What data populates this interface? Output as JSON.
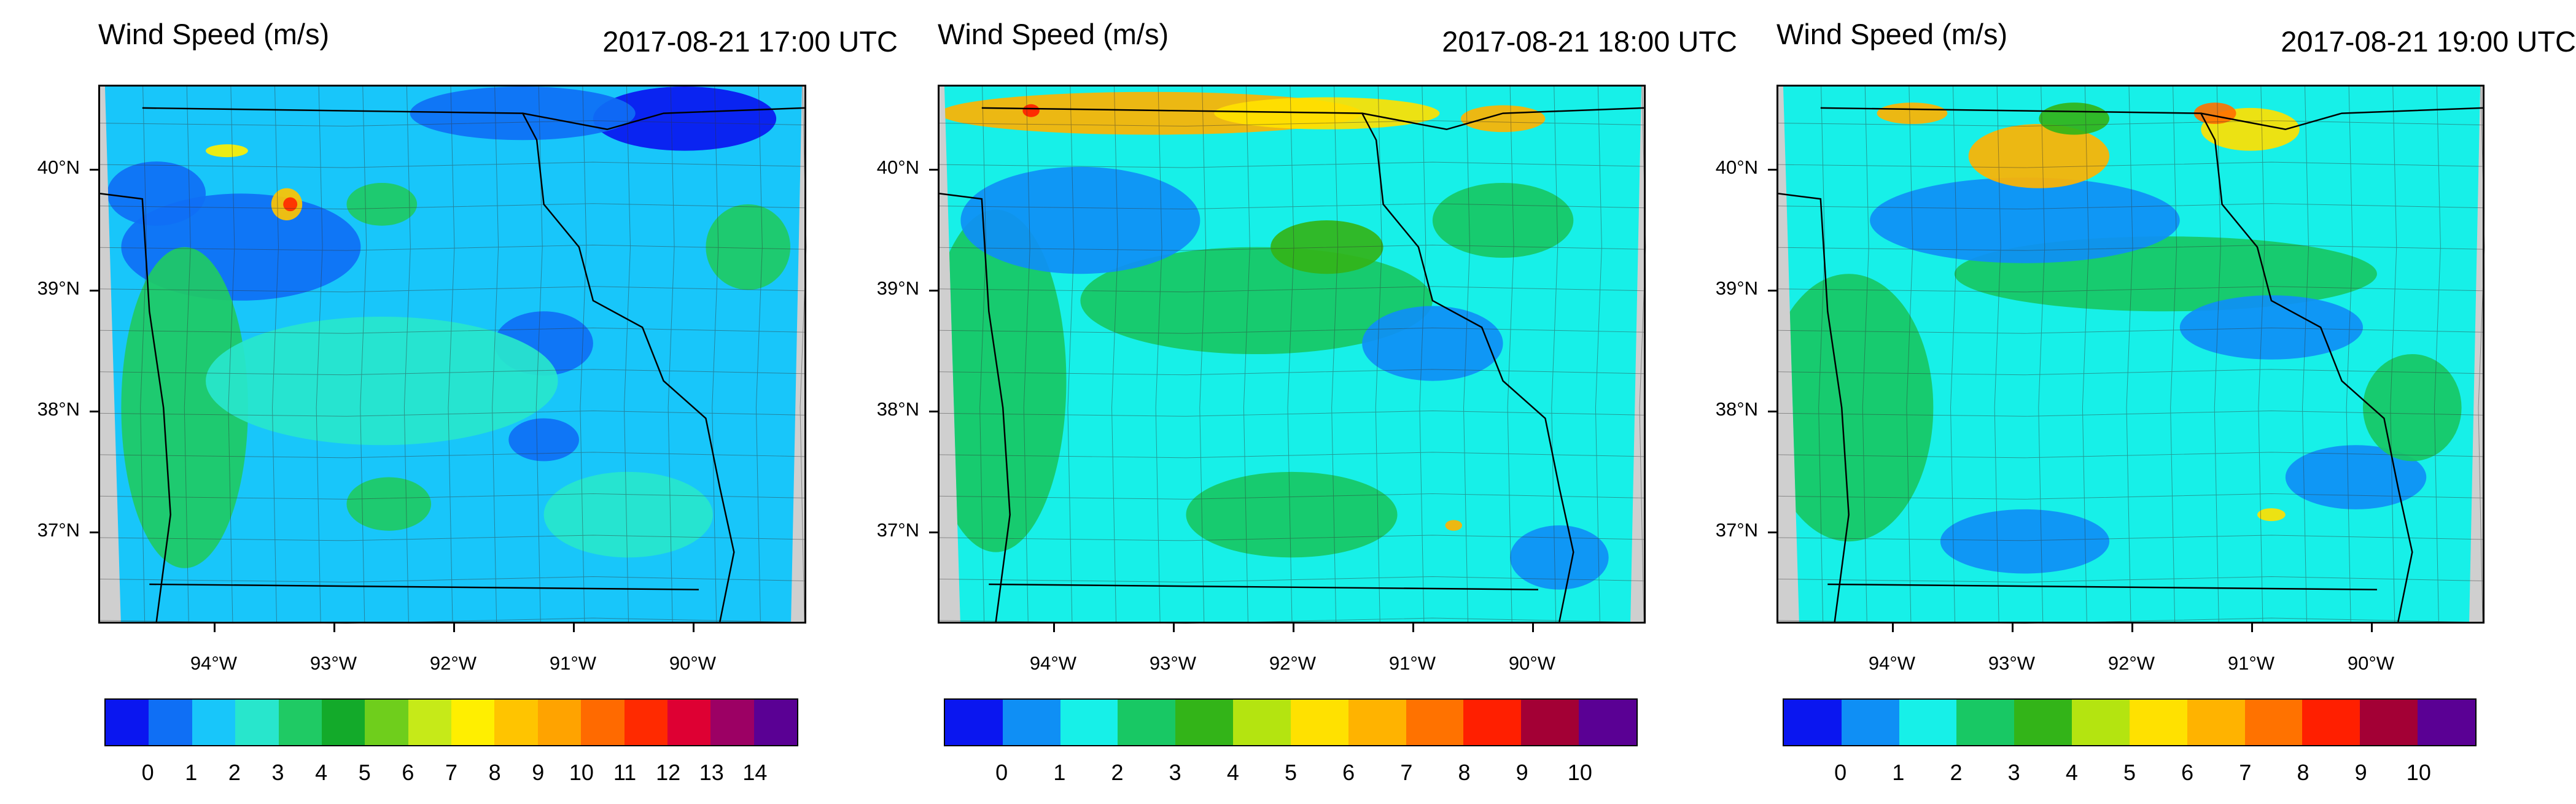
{
  "panels": [
    {
      "title": "Wind Speed (m/s)",
      "time": "2017-08-21 17:00 UTC",
      "lat_labels": [
        "40°N",
        "39°N",
        "38°N",
        "37°N"
      ],
      "lon_labels": [
        "94°W",
        "93°W",
        "92°W",
        "91°W",
        "90°W"
      ],
      "colorbar_labels": [
        "0",
        "1",
        "2",
        "3",
        "4",
        "5",
        "6",
        "7",
        "8",
        "9",
        "10",
        "11",
        "12",
        "13",
        "14"
      ],
      "colorbar_colors": [
        "#0a16f0",
        "#0f6ff5",
        "#18c6fa",
        "#28e6cc",
        "#1fca64",
        "#13aa2a",
        "#6fce1c",
        "#c6ea18",
        "#ffef00",
        "#ffc400",
        "#ffa300",
        "#ff6a00",
        "#ff2a00",
        "#de0033",
        "#9c0064",
        "#5a0094"
      ],
      "base_color": "#18c6fa",
      "blobs": [
        [
          "#0f6ff5",
          0.2,
          0.3,
          0.17,
          0.1
        ],
        [
          "#0f6ff5",
          0.08,
          0.2,
          0.07,
          0.06
        ],
        [
          "#0a16f0",
          0.83,
          0.06,
          0.13,
          0.06
        ],
        [
          "#0f6ff5",
          0.6,
          0.05,
          0.16,
          0.05
        ],
        [
          "#0f6ff5",
          0.63,
          0.48,
          0.07,
          0.06
        ],
        [
          "#0f6ff5",
          0.63,
          0.66,
          0.05,
          0.04
        ],
        [
          "#1fca64",
          0.12,
          0.6,
          0.09,
          0.3
        ],
        [
          "#28e6cc",
          0.4,
          0.55,
          0.25,
          0.12
        ],
        [
          "#1fca64",
          0.41,
          0.78,
          0.06,
          0.05
        ],
        [
          "#1fca64",
          0.92,
          0.3,
          0.06,
          0.08
        ],
        [
          "#28e6cc",
          0.75,
          0.8,
          0.12,
          0.08
        ],
        [
          "#1fca64",
          0.4,
          0.22,
          0.05,
          0.04
        ],
        [
          "#ffc400",
          0.265,
          0.22,
          0.022,
          0.03
        ],
        [
          "#ff2a00",
          0.27,
          0.22,
          0.01,
          0.013
        ],
        [
          "#ffef00",
          0.18,
          0.12,
          0.03,
          0.012
        ]
      ]
    },
    {
      "title": "Wind Speed (m/s)",
      "time": "2017-08-21 18:00 UTC",
      "lat_labels": [
        "40°N",
        "39°N",
        "38°N",
        "37°N"
      ],
      "lon_labels": [
        "94°W",
        "93°W",
        "92°W",
        "91°W",
        "90°W"
      ],
      "colorbar_labels": [
        "0",
        "1",
        "2",
        "3",
        "4",
        "5",
        "6",
        "7",
        "8",
        "9",
        "10"
      ],
      "colorbar_colors": [
        "#0a16f0",
        "#0f8ff5",
        "#17f0e8",
        "#18c864",
        "#33b418",
        "#b4e410",
        "#ffe100",
        "#ffb300",
        "#ff7200",
        "#ff1f00",
        "#a30035",
        "#5a0094"
      ],
      "base_color": "#17f0e8",
      "blobs": [
        [
          "#18c864",
          0.08,
          0.55,
          0.1,
          0.32
        ],
        [
          "#18c864",
          0.45,
          0.4,
          0.25,
          0.1
        ],
        [
          "#0f8ff5",
          0.2,
          0.25,
          0.17,
          0.1
        ],
        [
          "#0f8ff5",
          0.7,
          0.48,
          0.1,
          0.07
        ],
        [
          "#18c864",
          0.8,
          0.25,
          0.1,
          0.07
        ],
        [
          "#18c864",
          0.5,
          0.8,
          0.15,
          0.08
        ],
        [
          "#0f8ff5",
          0.88,
          0.88,
          0.07,
          0.06
        ],
        [
          "#ffb300",
          0.3,
          0.05,
          0.3,
          0.04
        ],
        [
          "#ffe100",
          0.55,
          0.05,
          0.16,
          0.03
        ],
        [
          "#ffb300",
          0.8,
          0.06,
          0.06,
          0.025
        ],
        [
          "#ff1f00",
          0.13,
          0.045,
          0.012,
          0.012
        ],
        [
          "#ffb300",
          0.73,
          0.82,
          0.012,
          0.01
        ],
        [
          "#33b418",
          0.55,
          0.3,
          0.08,
          0.05
        ]
      ]
    },
    {
      "title": "Wind Speed (m/s)",
      "time": "2017-08-21 19:00 UTC",
      "lat_labels": [
        "40°N",
        "39°N",
        "38°N",
        "37°N"
      ],
      "lon_labels": [
        "94°W",
        "93°W",
        "92°W",
        "91°W",
        "90°W"
      ],
      "colorbar_labels": [
        "0",
        "1",
        "2",
        "3",
        "4",
        "5",
        "6",
        "7",
        "8",
        "9",
        "10"
      ],
      "colorbar_colors": [
        "#0a16f0",
        "#0f8ff5",
        "#17f0e8",
        "#18c864",
        "#33b418",
        "#b4e410",
        "#ffe100",
        "#ffb300",
        "#ff7200",
        "#ff1f00",
        "#a30035",
        "#5a0094"
      ],
      "base_color": "#17f0e8",
      "blobs": [
        [
          "#18c864",
          0.1,
          0.6,
          0.12,
          0.25
        ],
        [
          "#18c864",
          0.55,
          0.35,
          0.3,
          0.07
        ],
        [
          "#0f8ff5",
          0.35,
          0.25,
          0.22,
          0.08
        ],
        [
          "#0f8ff5",
          0.7,
          0.45,
          0.13,
          0.06
        ],
        [
          "#0f8ff5",
          0.82,
          0.73,
          0.1,
          0.06
        ],
        [
          "#0f8ff5",
          0.35,
          0.85,
          0.12,
          0.06
        ],
        [
          "#18c864",
          0.9,
          0.6,
          0.07,
          0.1
        ],
        [
          "#ffb300",
          0.37,
          0.13,
          0.1,
          0.06
        ],
        [
          "#ffe100",
          0.67,
          0.08,
          0.07,
          0.04
        ],
        [
          "#ff7200",
          0.62,
          0.05,
          0.03,
          0.02
        ],
        [
          "#ffe100",
          0.7,
          0.8,
          0.02,
          0.012
        ],
        [
          "#ffb300",
          0.19,
          0.05,
          0.05,
          0.02
        ],
        [
          "#33b418",
          0.42,
          0.06,
          0.05,
          0.03
        ]
      ]
    }
  ]
}
